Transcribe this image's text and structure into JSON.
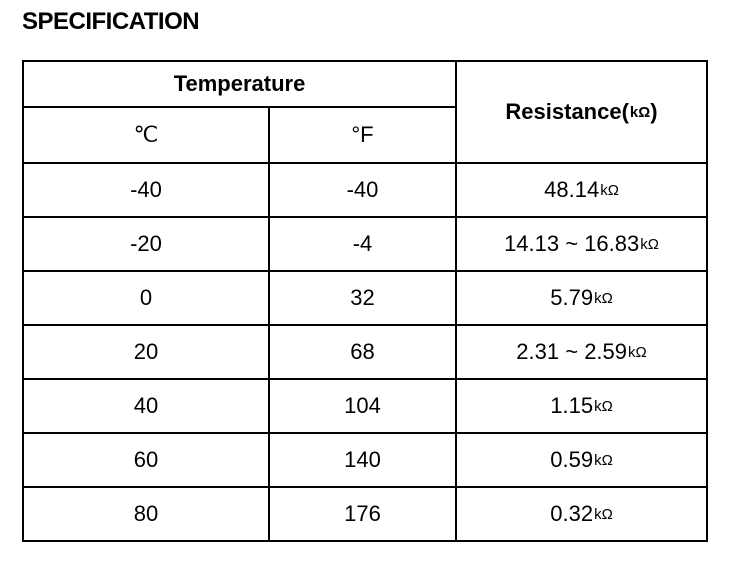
{
  "title": "SPECIFICATION",
  "table": {
    "header": {
      "temperature": "Temperature",
      "celsius": "℃",
      "fahrenheit": "°F",
      "resistance": [
        "Resistance(",
        "kΩ",
        ")"
      ]
    },
    "rows": [
      [
        "-40",
        "-40",
        {
          "value": "48.14",
          "unit": "kΩ"
        }
      ],
      [
        "-20",
        "-4",
        {
          "value": "14.13 ~ 16.83",
          "unit": "kΩ"
        }
      ],
      [
        "0",
        "32",
        {
          "value": "5.79",
          "unit": "kΩ"
        }
      ],
      [
        "20",
        "68",
        {
          "value": "2.31 ~ 2.59",
          "unit": "kΩ"
        }
      ],
      [
        "40",
        "104",
        {
          "value": "1.15",
          "unit": "kΩ"
        }
      ],
      [
        "60",
        "140",
        {
          "value": "0.59",
          "unit": "kΩ"
        }
      ],
      [
        "80",
        "176",
        {
          "value": "0.32",
          "unit": "kΩ"
        }
      ]
    ]
  }
}
